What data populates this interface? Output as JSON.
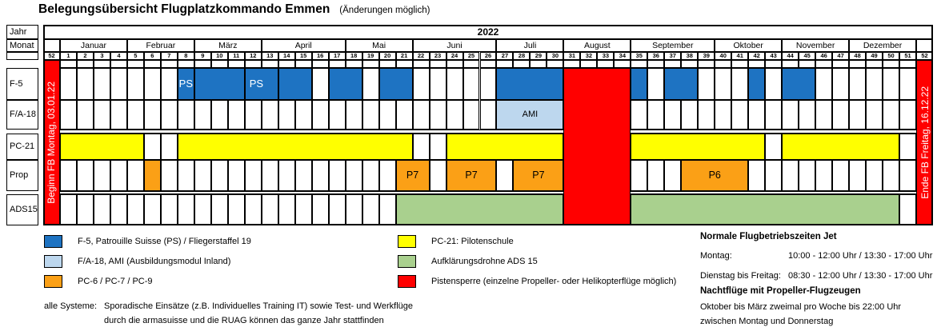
{
  "title": {
    "text": "Belegungsübersicht Flugplatzkommando Emmen",
    "subtitle": "(Änderungen möglich)"
  },
  "colors": {
    "blue": "#1E73C2",
    "lightblue": "#BDD7EE",
    "yellow": "#FFFF00",
    "orange": "#FBA016",
    "green": "#A9D08E",
    "red": "#FF0000",
    "white": "#FFFFFF",
    "border": "#000000"
  },
  "chart_data": {
    "type": "table",
    "title": "Belegungsübersicht Flugplatzkommando Emmen",
    "subtitle": "(Änderungen möglich)",
    "row_header_labels": {
      "year": "Jahr",
      "month": "Monat"
    },
    "year": "2022",
    "week_columns": {
      "lead": "52",
      "first": 1,
      "last": 51,
      "trail": "52"
    },
    "months": [
      {
        "label": "Januar",
        "from": 1,
        "to": 4
      },
      {
        "label": "Februar",
        "from": 5,
        "to": 8
      },
      {
        "label": "März",
        "from": 9,
        "to": 12
      },
      {
        "label": "April",
        "from": 13,
        "to": 17
      },
      {
        "label": "Mai",
        "from": 18,
        "to": 21
      },
      {
        "label": "Juni",
        "from": 22,
        "to": 26
      },
      {
        "label": "Juli",
        "from": 27,
        "to": 30
      },
      {
        "label": "August",
        "from": 31,
        "to": 34
      },
      {
        "label": "September",
        "from": 35,
        "to": 39
      },
      {
        "label": "Oktober",
        "from": 40,
        "to": 43
      },
      {
        "label": "November",
        "from": 44,
        "to": 47
      },
      {
        "label": "Dezember",
        "from": 48,
        "to": 51
      }
    ],
    "rows": [
      {
        "label": "F-5",
        "color": "blue",
        "blocks": [
          {
            "from": 8,
            "to": 8,
            "text": "PS"
          },
          {
            "from": 9,
            "to": 11,
            "text": ""
          },
          {
            "from": 12,
            "to": 13,
            "text": "PS",
            "text_at_start": true
          },
          {
            "from": 14,
            "to": 15,
            "text": ""
          },
          {
            "from": 17,
            "to": 18,
            "text": ""
          },
          {
            "from": 20,
            "to": 21,
            "text": ""
          },
          {
            "from": 27,
            "to": 30,
            "text": ""
          },
          {
            "from": 35,
            "to": 35,
            "text": ""
          },
          {
            "from": 37,
            "to": 38,
            "text": ""
          },
          {
            "from": 42,
            "to": 42,
            "text": ""
          },
          {
            "from": 44,
            "to": 45,
            "text": ""
          }
        ]
      },
      {
        "label": "F/A-18",
        "color": "lightblue",
        "blocks": [
          {
            "from": 27,
            "to": 30,
            "text": "AMI"
          }
        ]
      },
      {
        "label": "PC-21",
        "color": "yellow",
        "blocks": [
          {
            "from": 1,
            "to": 5,
            "text": ""
          },
          {
            "from": 8,
            "to": 21,
            "text": ""
          },
          {
            "from": 24,
            "to": 30,
            "text": ""
          },
          {
            "from": 35,
            "to": 42,
            "text": ""
          },
          {
            "from": 44,
            "to": 50,
            "text": ""
          }
        ]
      },
      {
        "label": "Prop",
        "color": "orange",
        "blocks": [
          {
            "from": 6,
            "to": 6,
            "text": ""
          },
          {
            "from": 21,
            "to": 22,
            "text": "P7"
          },
          {
            "from": 24,
            "to": 26,
            "text": "P7"
          },
          {
            "from": 28,
            "to": 30,
            "text": "P7"
          },
          {
            "from": 38,
            "to": 41,
            "text": "P6"
          }
        ]
      },
      {
        "label": "ADS15",
        "color": "green",
        "blocks": [
          {
            "from": 21,
            "to": 30,
            "text": ""
          },
          {
            "from": 35,
            "to": 50,
            "text": ""
          }
        ]
      }
    ],
    "closure_block": {
      "from": 31,
      "to": 34,
      "color": "red"
    },
    "begin_column": {
      "text": "Beginn FB Montag, 03.01.22",
      "color": "red"
    },
    "end_column": {
      "text": "Ende FB Freitag, 16.12.22",
      "color": "red"
    }
  },
  "legend": {
    "columns": [
      {
        "items": [
          {
            "color": "blue",
            "label": "F-5, Patrouille Suisse (PS) / Fliegerstaffel 19"
          },
          {
            "color": "lightblue",
            "label": "F/A-18, AMI (Ausbildungsmodul Inland)"
          },
          {
            "color": "orange",
            "label": "PC-6 / PC-7 / PC-9"
          }
        ]
      },
      {
        "items": [
          {
            "color": "yellow",
            "label": "PC-21: Pilotenschule"
          },
          {
            "color": "green",
            "label": "Aufklärungsdrohne ADS 15"
          },
          {
            "color": "red",
            "label": "Pistensperre (einzelne Propeller- oder Helikopterflüge möglich)"
          }
        ]
      }
    ]
  },
  "note": {
    "label": "alle Systeme:",
    "lines": [
      "Sporadische Einsätze (z.B. Individuelles Training IT) sowie Test- und Werkflüge",
      "durch die armasuisse und die RUAG können das ganze Jahr stattfinden"
    ]
  },
  "info_panel": {
    "heading_jet": "Normale Flugbetriebszeiten Jet",
    "rows": [
      {
        "label": "Montag:",
        "value": "10:00 - 12:00 Uhr / 13:30 - 17:00 Uhr"
      },
      {
        "label": "Dienstag bis Freitag:",
        "value": "08:30 - 12:00 Uhr / 13:30 - 17:00 Uhr"
      }
    ],
    "heading_prop": "Nachtflüge mit Propeller-Flugzeugen",
    "lines": [
      "Oktober bis März zweimal pro Woche bis 22:00 Uhr",
      "zwischen Montag und Donnerstag"
    ]
  }
}
